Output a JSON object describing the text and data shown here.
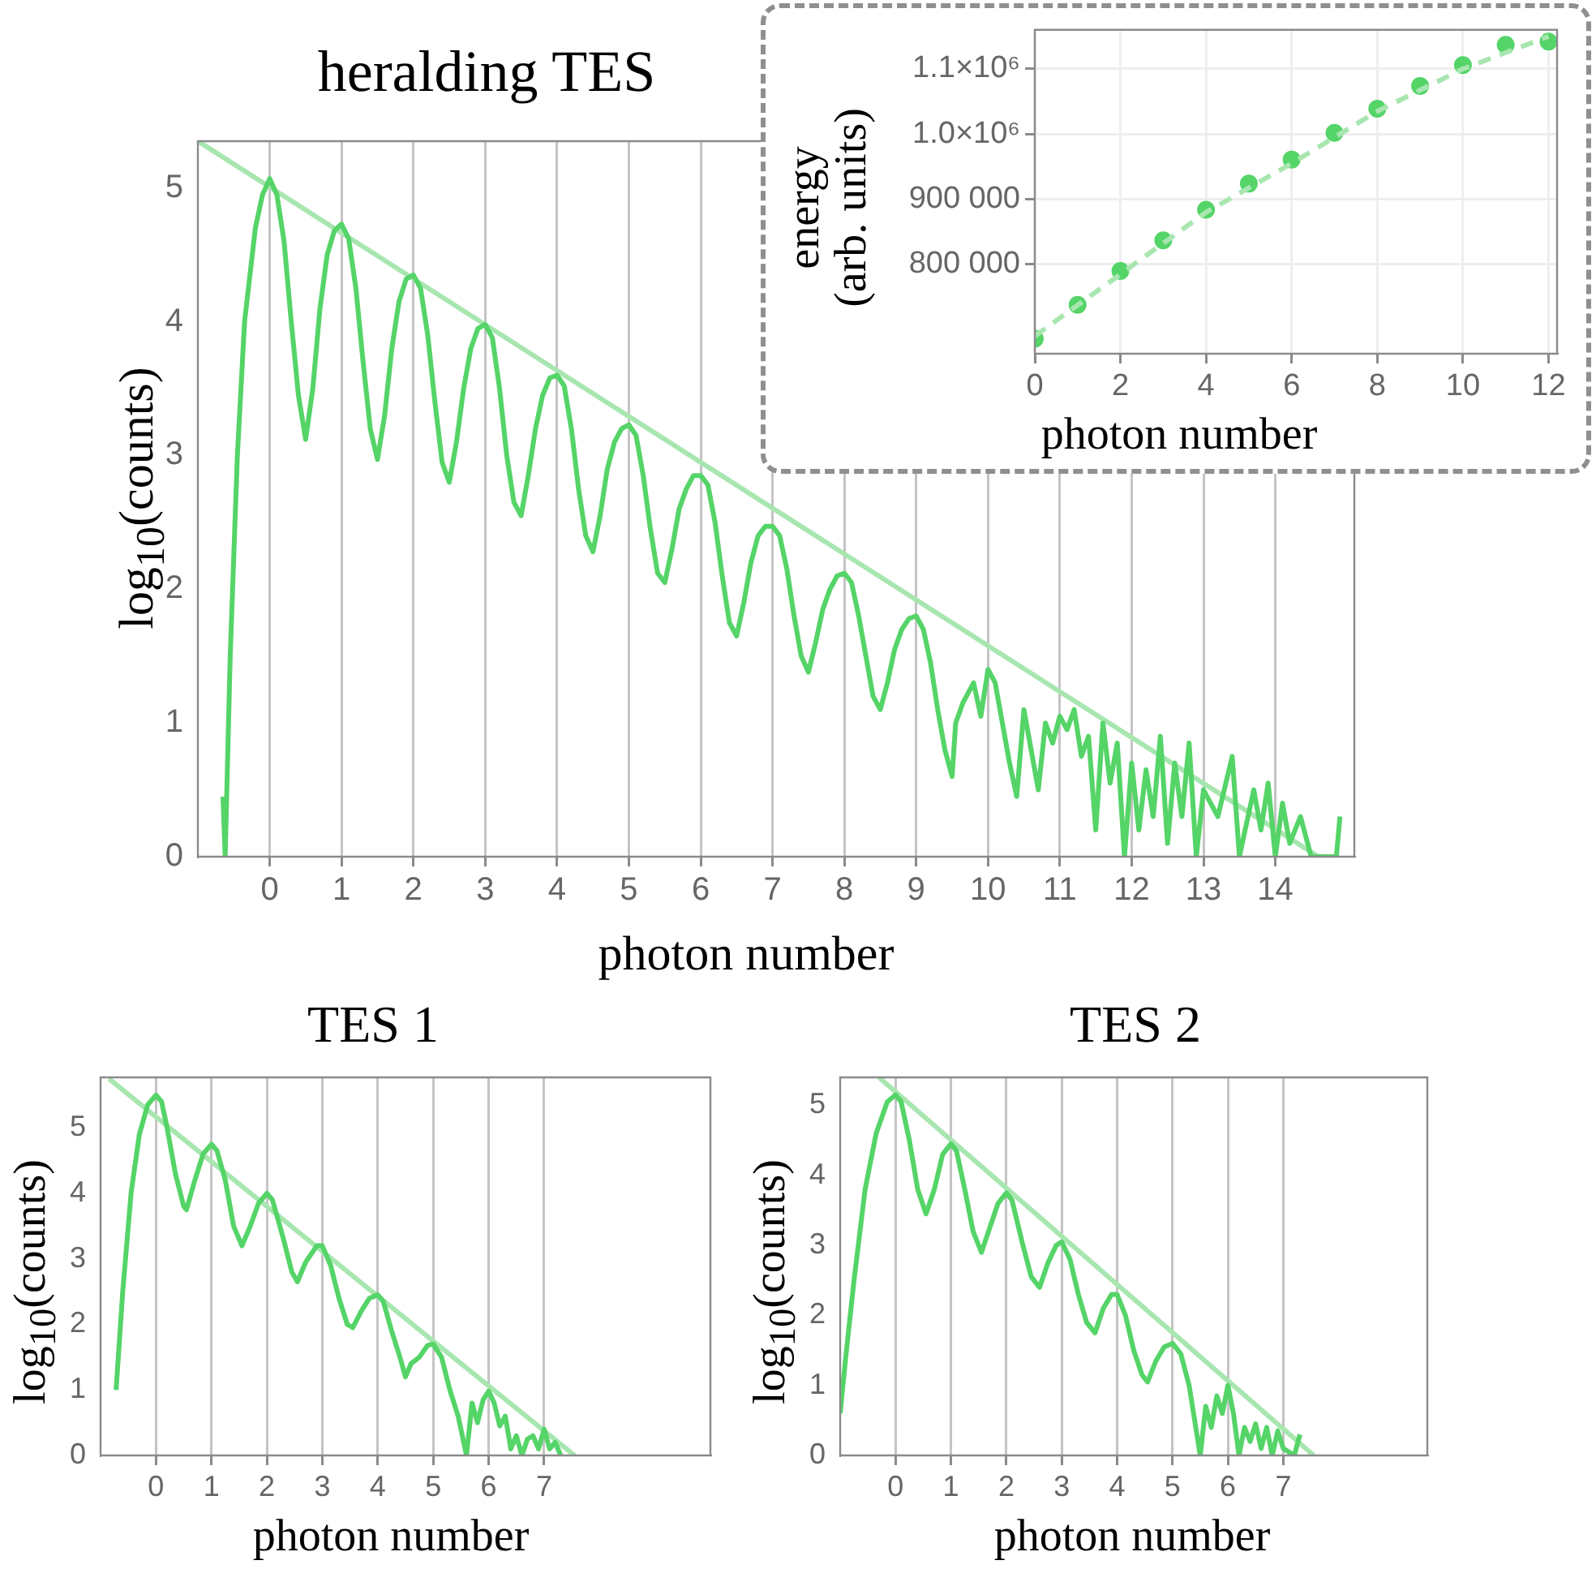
{
  "chart_data": [
    {
      "type": "line",
      "title": "heralding TES",
      "xlabel": "photon number",
      "ylabel": "log$_{10}$(counts)",
      "xlim": [
        -1,
        15.1
      ],
      "ylim": [
        0,
        5.35
      ],
      "xticks": [
        0,
        1,
        2,
        3,
        4,
        5,
        6,
        7,
        8,
        9,
        10,
        11,
        12,
        13,
        14
      ],
      "yticks": [
        0,
        1,
        2,
        3,
        4,
        5
      ],
      "grid": "x",
      "legend": false,
      "series": [
        {
          "color": "#55d468",
          "x": [
            -0.65,
            -0.62,
            -0.55,
            -0.45,
            -0.35,
            -0.2,
            -0.1,
            0,
            0.1,
            0.2,
            0.3,
            0.4,
            0.5,
            0.6,
            0.7,
            0.8,
            0.9,
            1,
            1.1,
            1.2,
            1.3,
            1.4,
            1.5,
            1.6,
            1.7,
            1.8,
            1.9,
            2,
            2.1,
            2.2,
            2.3,
            2.4,
            2.5,
            2.6,
            2.7,
            2.8,
            2.9,
            3,
            3.1,
            3.2,
            3.3,
            3.4,
            3.5,
            3.6,
            3.7,
            3.8,
            3.9,
            4,
            4.1,
            4.2,
            4.3,
            4.4,
            4.5,
            4.6,
            4.7,
            4.8,
            4.9,
            5,
            5.1,
            5.2,
            5.3,
            5.4,
            5.5,
            5.6,
            5.7,
            5.8,
            5.9,
            6,
            6.1,
            6.2,
            6.3,
            6.4,
            6.5,
            6.6,
            6.7,
            6.8,
            6.9,
            7,
            7.1,
            7.2,
            7.3,
            7.4,
            7.5,
            7.6,
            7.7,
            7.8,
            7.9,
            8,
            8.1,
            8.2,
            8.3,
            8.4,
            8.5,
            8.6,
            8.7,
            8.8,
            8.9,
            9,
            9.1,
            9.2,
            9.3,
            9.4,
            9.5,
            9.55,
            9.65,
            9.8,
            9.9,
            10,
            10.1,
            10.2,
            10.3,
            10.4,
            10.5,
            10.6,
            10.7,
            10.8,
            10.9,
            11,
            11.1,
            11.2,
            11.3,
            11.4,
            11.5,
            11.6,
            11.7,
            11.8,
            11.9,
            12,
            12.1,
            12.2,
            12.3,
            12.4,
            12.5,
            12.6,
            12.7,
            12.8,
            12.9,
            13,
            13.2,
            13.4,
            13.5,
            13.7,
            13.8,
            13.9,
            14,
            14.1,
            14.2,
            14.35,
            14.5,
            14.85,
            14.9
          ],
          "values": [
            0.45,
            0,
            1.5,
            3.0,
            4.0,
            4.7,
            4.95,
            5.07,
            4.95,
            4.6,
            4.0,
            3.45,
            3.12,
            3.5,
            4.1,
            4.5,
            4.68,
            4.73,
            4.62,
            4.25,
            3.7,
            3.2,
            2.97,
            3.3,
            3.8,
            4.15,
            4.32,
            4.35,
            4.25,
            3.9,
            3.4,
            2.95,
            2.8,
            3.1,
            3.5,
            3.8,
            3.95,
            3.98,
            3.88,
            3.5,
            3.0,
            2.65,
            2.55,
            2.85,
            3.2,
            3.45,
            3.58,
            3.6,
            3.52,
            3.2,
            2.75,
            2.4,
            2.28,
            2.55,
            2.9,
            3.1,
            3.2,
            3.23,
            3.15,
            2.85,
            2.45,
            2.12,
            2.05,
            2.3,
            2.6,
            2.75,
            2.85,
            2.85,
            2.78,
            2.5,
            2.1,
            1.75,
            1.65,
            1.9,
            2.2,
            2.4,
            2.47,
            2.47,
            2.4,
            2.15,
            1.8,
            1.5,
            1.38,
            1.6,
            1.85,
            2.0,
            2.1,
            2.12,
            2.05,
            1.8,
            1.5,
            1.2,
            1.1,
            1.3,
            1.55,
            1.7,
            1.78,
            1.8,
            1.7,
            1.45,
            1.1,
            0.8,
            0.6,
            1.0,
            1.15,
            1.3,
            1.05,
            1.4,
            1.3,
            1.0,
            0.7,
            0.45,
            1.1,
            0.8,
            0.5,
            1.0,
            0.85,
            1.05,
            0.95,
            1.1,
            0.75,
            0.9,
            0.2,
            1.0,
            0.55,
            0.85,
            0,
            0.7,
            0.2,
            0.65,
            0.3,
            0.9,
            0.1,
            0.7,
            0.3,
            0.85,
            0,
            0.5,
            0.3,
            0.75,
            0,
            0.5,
            0.2,
            0.55,
            0,
            0.4,
            0.1,
            0.3,
            0,
            0,
            0.3
          ]
        },
        {
          "color": "#a8e6b0",
          "x": [
            -1,
            14.6
          ],
          "values": [
            5.35,
            0
          ]
        }
      ]
    },
    {
      "type": "scatter",
      "xlabel": "photon number",
      "ylabel": "energy\n(arb. units)",
      "xlim": [
        0,
        12.2
      ],
      "ylim": [
        663000,
        1160000
      ],
      "xticks": [
        0,
        2,
        4,
        6,
        8,
        10,
        12
      ],
      "yticks": [
        {
          "value": 800000,
          "label": "800 000"
        },
        {
          "value": 900000,
          "label": "900 000"
        },
        {
          "value": 1000000,
          "label": "1.0×10⁶"
        },
        {
          "value": 1100000,
          "label": "1.1×10⁶"
        }
      ],
      "grid": true,
      "legend": false,
      "series": [
        {
          "type": "line",
          "line_style": "dashed",
          "color": "#a8e6b0",
          "x": [
            0,
            2,
            4,
            6,
            8,
            10,
            12
          ],
          "values": [
            690000,
            785000,
            880000,
            955000,
            1035000,
            1100000,
            1150000
          ]
        },
        {
          "marker": "circle",
          "color": "#55d468",
          "x": [
            0,
            1,
            2,
            3,
            4,
            5,
            6,
            7,
            8,
            9,
            10,
            11,
            12
          ],
          "values": [
            686000,
            738000,
            790000,
            837000,
            884000,
            924000,
            961000,
            1002000,
            1039000,
            1074000,
            1106000,
            1137000,
            1142000
          ]
        }
      ]
    },
    {
      "type": "line",
      "title": "TES 1",
      "xlabel": "photon number",
      "ylabel": "log$_{10}$(counts)",
      "xlim": [
        -1,
        10
      ],
      "ylim": [
        0,
        5.77
      ],
      "xticks": [
        0,
        1,
        2,
        3,
        4,
        5,
        6,
        7
      ],
      "yticks": [
        0,
        1,
        2,
        3,
        4,
        5
      ],
      "grid": "x",
      "legend": false,
      "series": [
        {
          "color": "#55d468",
          "x": [
            -0.72,
            -0.6,
            -0.45,
            -0.3,
            -0.15,
            0,
            0.1,
            0.2,
            0.35,
            0.5,
            0.55,
            0.7,
            0.85,
            1,
            1.1,
            1.25,
            1.4,
            1.55,
            1.7,
            1.85,
            2,
            2.1,
            2.3,
            2.45,
            2.55,
            2.7,
            2.9,
            3,
            3.15,
            3.3,
            3.45,
            3.55,
            3.7,
            3.85,
            4,
            4.1,
            4.25,
            4.4,
            4.5,
            4.6,
            4.75,
            4.9,
            5,
            5.15,
            5.3,
            5.45,
            5.55,
            5.6,
            5.7,
            5.8,
            5.9,
            6,
            6.1,
            6.2,
            6.3,
            6.4,
            6.5,
            6.6,
            6.7,
            6.8,
            6.9,
            7,
            7.1,
            7.2,
            7.3
          ],
          "values": [
            1.0,
            2.5,
            4.0,
            4.9,
            5.35,
            5.5,
            5.4,
            5.0,
            4.3,
            3.8,
            3.75,
            4.2,
            4.6,
            4.75,
            4.65,
            4.2,
            3.5,
            3.2,
            3.5,
            3.85,
            4.0,
            3.9,
            3.3,
            2.8,
            2.65,
            2.95,
            3.2,
            3.2,
            2.9,
            2.4,
            2.0,
            1.95,
            2.2,
            2.4,
            2.45,
            2.35,
            1.9,
            1.5,
            1.2,
            1.4,
            1.5,
            1.68,
            1.7,
            1.5,
            1.0,
            0.6,
            0.2,
            0,
            0.8,
            0.5,
            0.85,
            0.98,
            0.8,
            0.45,
            0.6,
            0.1,
            0.3,
            0,
            0.25,
            0.3,
            0.1,
            0.4,
            0.1,
            0.2,
            0
          ]
        },
        {
          "color": "#a8e6b0",
          "x": [
            -0.85,
            7.55
          ],
          "values": [
            5.75,
            0
          ]
        }
      ]
    },
    {
      "type": "line",
      "title": "TES 2",
      "xlabel": "photon number",
      "ylabel": "log$_{10}$(counts)",
      "xlim": [
        -1,
        9.6
      ],
      "ylim": [
        0,
        5.4
      ],
      "xticks": [
        0,
        1,
        2,
        3,
        4,
        5,
        6,
        7
      ],
      "yticks": [
        0,
        1,
        2,
        3,
        4,
        5
      ],
      "grid": "x",
      "legend": false,
      "series": [
        {
          "color": "#55d468",
          "x": [
            -1,
            -0.9,
            -0.75,
            -0.55,
            -0.35,
            -0.15,
            0,
            0.1,
            0.25,
            0.4,
            0.55,
            0.7,
            0.85,
            1,
            1.1,
            1.25,
            1.4,
            1.55,
            1.7,
            1.85,
            2,
            2.1,
            2.3,
            2.45,
            2.6,
            2.75,
            2.9,
            3,
            3.15,
            3.3,
            3.45,
            3.6,
            3.75,
            3.9,
            4,
            4.15,
            4.3,
            4.45,
            4.55,
            4.7,
            4.85,
            5,
            5.15,
            5.3,
            5.4,
            5.5,
            5.6,
            5.7,
            5.8,
            5.9,
            6,
            6.1,
            6.2,
            6.3,
            6.4,
            6.5,
            6.6,
            6.7,
            6.8,
            6.9,
            7.0,
            7.2,
            7.3
          ],
          "values": [
            0.6,
            1.4,
            2.5,
            3.8,
            4.6,
            5.05,
            5.15,
            5.05,
            4.5,
            3.8,
            3.45,
            3.8,
            4.3,
            4.45,
            4.35,
            3.8,
            3.2,
            2.9,
            3.25,
            3.6,
            3.75,
            3.65,
            3.0,
            2.55,
            2.4,
            2.75,
            3.0,
            3.05,
            2.8,
            2.3,
            1.9,
            1.75,
            2.1,
            2.3,
            2.3,
            2.0,
            1.5,
            1.15,
            1.05,
            1.35,
            1.55,
            1.6,
            1.45,
            1.0,
            0.5,
            0,
            0.7,
            0.4,
            0.85,
            0.6,
            1.0,
            0.6,
            0,
            0.4,
            0.2,
            0.45,
            0.1,
            0.4,
            0,
            0.35,
            0.1,
            0,
            0.3
          ]
        },
        {
          "color": "#a8e6b0",
          "x": [
            -0.3,
            7.55
          ],
          "values": [
            5.4,
            0
          ]
        }
      ]
    }
  ]
}
